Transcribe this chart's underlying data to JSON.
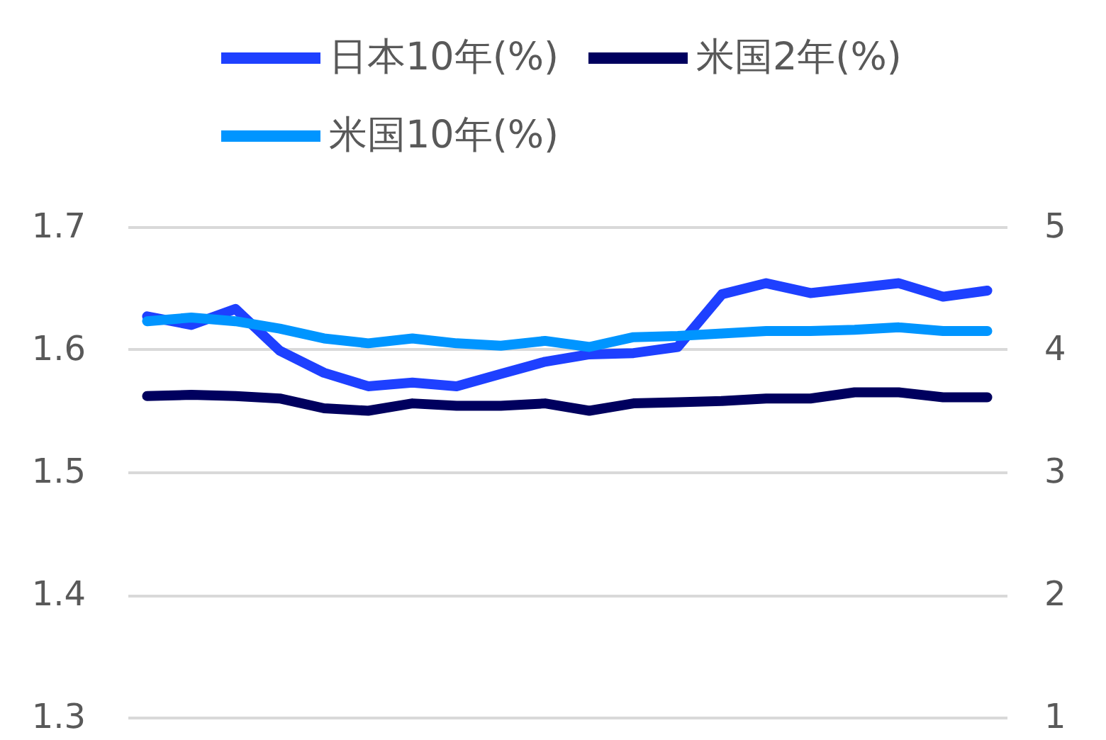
{
  "chart_data": {
    "type": "line",
    "categories": [
      null,
      null,
      null,
      null,
      null,
      null,
      null,
      null,
      null,
      null,
      null,
      null,
      null,
      null,
      null,
      null,
      null,
      null,
      null,
      null
    ],
    "series": [
      {
        "name": "日本10年(%)",
        "color": "#1e40ff",
        "values": [
          1.627,
          1.62,
          1.633,
          1.599,
          1.581,
          1.57,
          1.573,
          1.57,
          1.58,
          1.59,
          1.596,
          1.597,
          1.602,
          1.645,
          1.654,
          1.646,
          1.65,
          1.654,
          1.643,
          1.648
        ]
      },
      {
        "name": "米国2年(%)",
        "color": "#00005e",
        "axis": "y2",
        "values": [
          3.62,
          3.63,
          3.62,
          3.6,
          3.52,
          3.5,
          3.56,
          3.54,
          3.54,
          3.56,
          3.5,
          3.56,
          3.57,
          3.58,
          3.6,
          3.6,
          3.65,
          3.65,
          3.61,
          3.61
        ]
      },
      {
        "name": "米国10年(%)",
        "color": "#0095ff",
        "axis": "y2",
        "values": [
          4.23,
          4.26,
          4.23,
          4.17,
          4.09,
          4.05,
          4.09,
          4.05,
          4.03,
          4.07,
          4.02,
          4.1,
          4.11,
          4.13,
          4.15,
          4.15,
          4.16,
          4.18,
          4.15,
          4.15
        ]
      }
    ],
    "ylim": [
      1.3,
      1.7
    ],
    "yticks": [
      1.3,
      1.4,
      1.5,
      1.6,
      1.7
    ],
    "y2lim": [
      1,
      5
    ],
    "y2ticks": [
      1,
      2,
      3,
      4,
      5
    ],
    "grid": "y",
    "legend": "top",
    "line_style": "solid"
  }
}
